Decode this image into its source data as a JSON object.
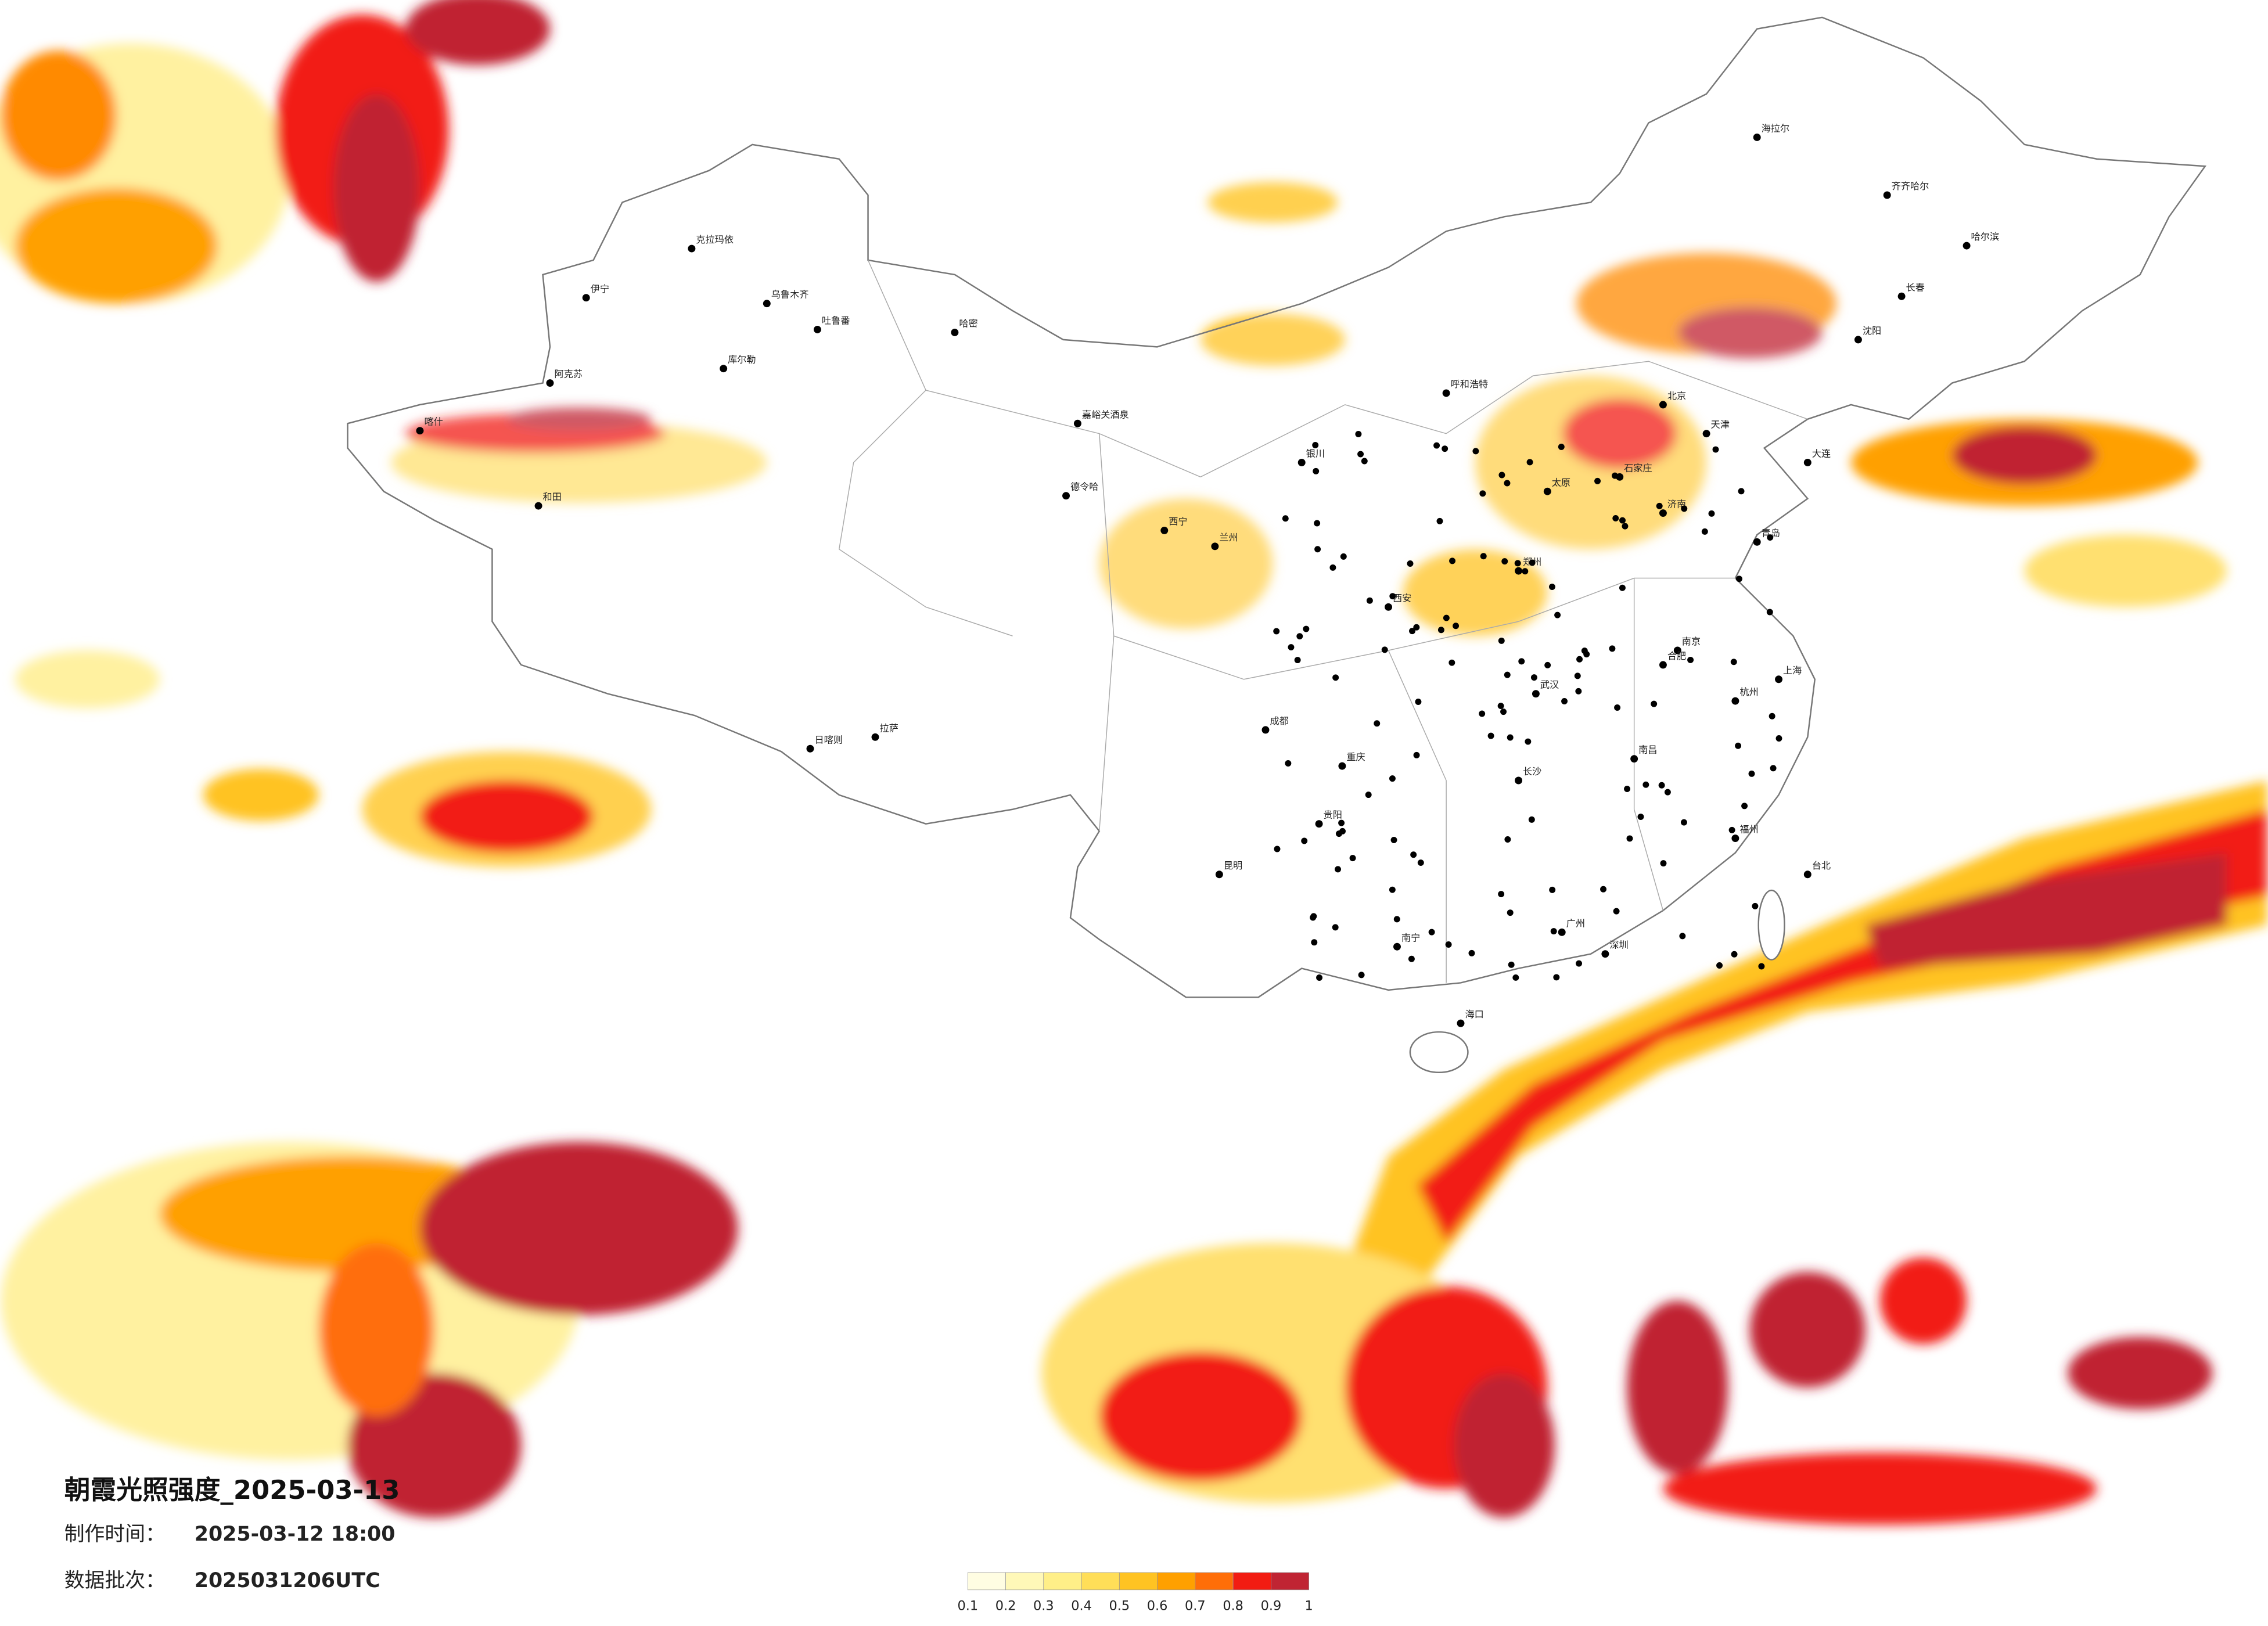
{
  "title": "朝霞光照强度_2025-03-13",
  "made_label": "制作时间：",
  "made_time": "2025-03-12 18:00",
  "batch_label": "数据批次：",
  "batch": "2025031206UTC",
  "legend": {
    "ticks": [
      0.1,
      0.2,
      0.3,
      0.4,
      0.5,
      0.6,
      0.7,
      0.8,
      0.9,
      1
    ],
    "colors": [
      "#fffde2",
      "#fff8b8",
      "#ffef88",
      "#ffde58",
      "#ffc322",
      "#ffa000",
      "#ff6e08",
      "#f21c12",
      "#c02433"
    ]
  },
  "cities": [
    "乌鲁木齐",
    "克拉玛依",
    "伊宁",
    "阿克苏",
    "和田",
    "喀什",
    "哈密",
    "吐鲁番",
    "库尔勒",
    "拉萨",
    "日喀则",
    "嘉峪关酒泉",
    "德令哈",
    "西宁",
    "兰州",
    "银川",
    "呼和浩特",
    "北京",
    "天津",
    "石家庄",
    "太原",
    "济南",
    "郑州",
    "西安",
    "成都",
    "重庆",
    "贵阳",
    "昆明",
    "南宁",
    "广州",
    "深圳",
    "海口",
    "台北",
    "福州",
    "杭州",
    "上海",
    "南京",
    "合肥",
    "武汉",
    "长沙",
    "南昌",
    "沈阳",
    "长春",
    "哈尔滨",
    "齐齐哈尔",
    "海拉尔",
    "大连",
    "青岛"
  ]
}
